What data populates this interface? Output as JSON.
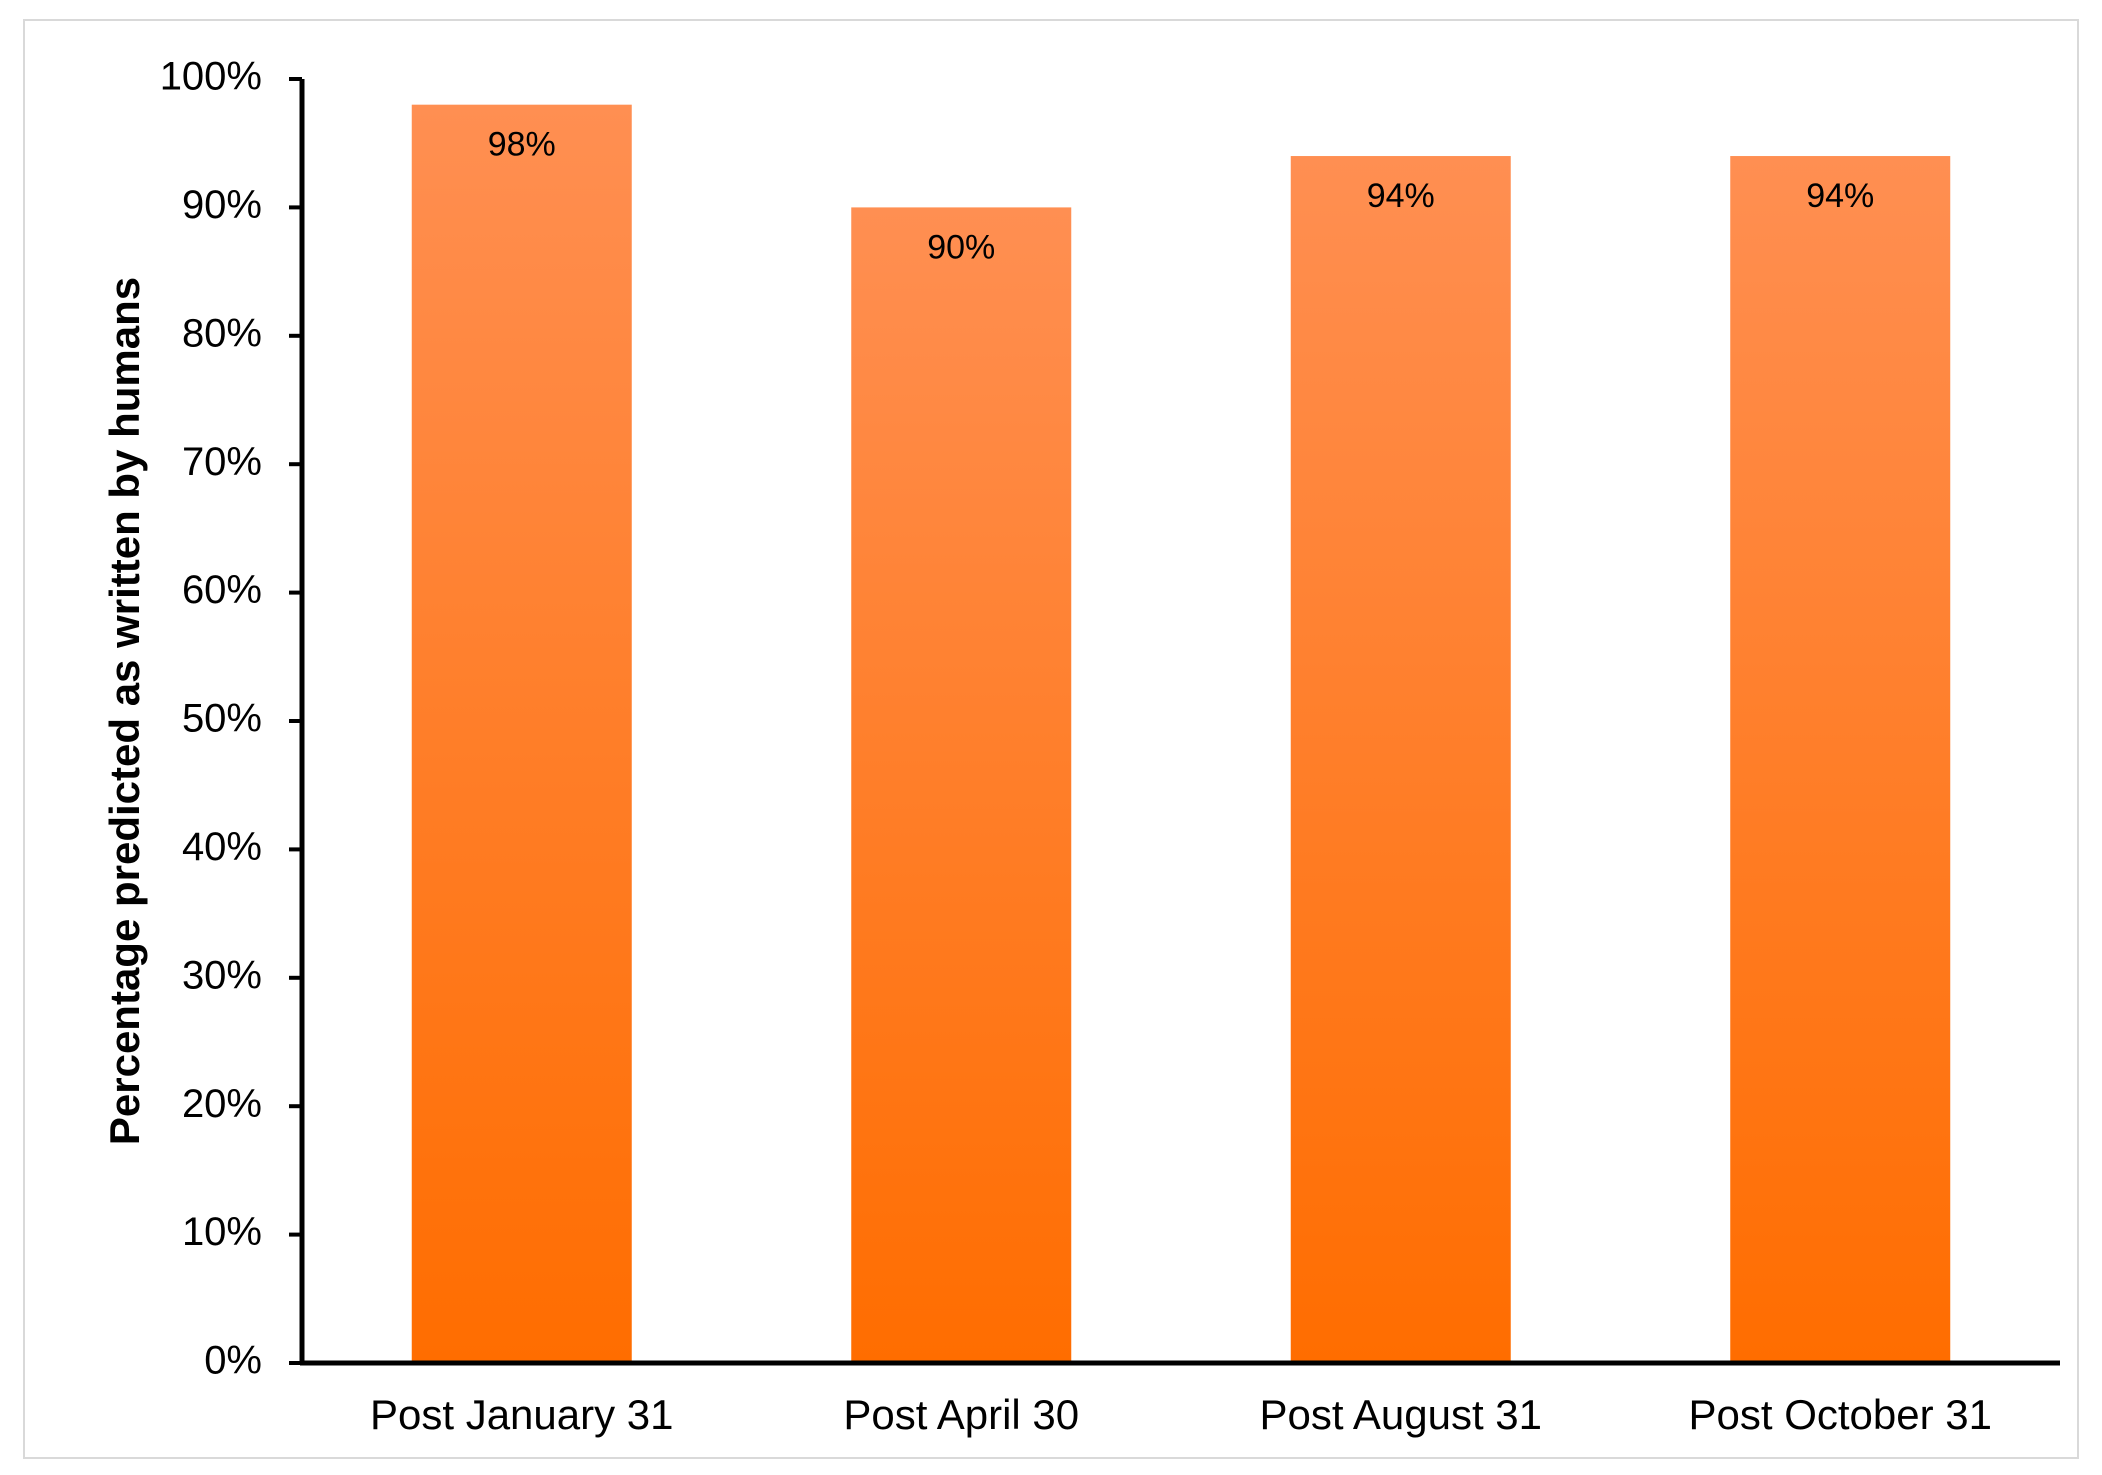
{
  "chart_data": {
    "type": "bar",
    "title": "",
    "xlabel": "",
    "ylabel": "Percentage predicted as written by humans",
    "categories": [
      "Post January 31",
      "Post April 30",
      "Post August 31",
      "Post October 31"
    ],
    "values": [
      98,
      90,
      94,
      94
    ],
    "data_labels": [
      "98%",
      "90%",
      "94%",
      "94%"
    ],
    "ylim": [
      0,
      100
    ],
    "yticks": [
      0,
      10,
      20,
      30,
      40,
      50,
      60,
      70,
      80,
      90,
      100
    ],
    "ytick_labels": [
      "0%",
      "10%",
      "20%",
      "30%",
      "40%",
      "50%",
      "60%",
      "70%",
      "80%",
      "90%",
      "100%"
    ],
    "grid": false,
    "legend": "none",
    "colors": {
      "bar_top": "#ff8f52",
      "bar_bottom": "#ff6d00",
      "axis": "#000000",
      "frame": "#d9d9d9"
    }
  }
}
